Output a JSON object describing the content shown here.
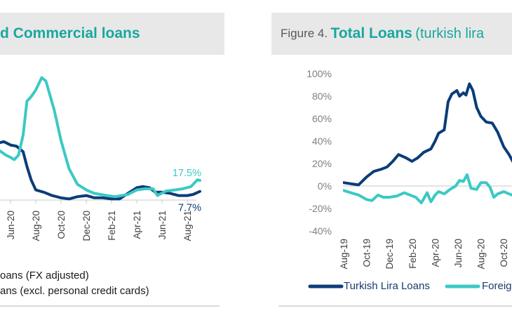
{
  "colors": {
    "navy": "#0b3d78",
    "cyan": "#3cc9c4",
    "title": "#17a89e",
    "header_bg": "#e8e8e8"
  },
  "left_header": {
    "title": "d Commercial loans"
  },
  "right_header": {
    "figure_label": "Figure 4.",
    "title": "Total Loans",
    "subtitle": "(turkish lira"
  },
  "chart_data": [
    {
      "type": "line",
      "title": "d Commercial loans",
      "x_tick_labels": [
        "Jun-20",
        "Aug-20",
        "Oct-20",
        "Dec-20",
        "Feb-21",
        "Apr-21",
        "Jun-21",
        "Aug-21"
      ],
      "x_ticks": [
        "2020-06-01",
        "2020-08-01",
        "2020-10-01",
        "2020-12-01",
        "2021-02-01",
        "2021-04-01",
        "2021-06-01",
        "2021-08-01"
      ],
      "zero_line": true,
      "grid": false,
      "legend_placement": "bottom",
      "annotations": [
        {
          "text": "17.5%",
          "series": 1,
          "color": "#3cc9c4"
        },
        {
          "text": "7.7%",
          "series": 0,
          "color": "#0b3d78"
        }
      ],
      "series": [
        {
          "name": "oans (FX adjusted)",
          "color": "#0b3d78",
          "x": [
            "2020-05-05",
            "2020-05-15",
            "2020-06-01",
            "2020-06-15",
            "2020-07-01",
            "2020-07-10",
            "2020-07-20",
            "2020-08-01",
            "2020-08-20",
            "2020-09-10",
            "2020-10-01",
            "2020-10-20",
            "2020-11-10",
            "2020-12-01",
            "2020-12-20",
            "2021-01-10",
            "2021-02-01",
            "2021-02-20",
            "2021-03-10",
            "2021-04-01",
            "2021-04-15",
            "2021-05-01",
            "2021-05-15",
            "2021-06-01",
            "2021-06-20",
            "2021-07-10",
            "2021-08-01",
            "2021-08-15",
            "2021-08-31"
          ],
          "y": [
            51,
            52,
            49,
            48,
            43,
            30,
            18,
            9,
            7,
            4,
            2,
            1,
            3,
            4,
            2,
            2,
            1,
            1,
            6,
            11,
            12,
            11,
            7,
            7,
            6,
            4,
            4,
            5,
            7.7
          ]
        },
        {
          "name": "ans (excl. personal credit cards)",
          "color": "#3cc9c4",
          "x": [
            "2020-05-05",
            "2020-05-20",
            "2020-06-01",
            "2020-06-10",
            "2020-06-20",
            "2020-07-01",
            "2020-07-10",
            "2020-07-20",
            "2020-08-01",
            "2020-08-15",
            "2020-08-25",
            "2020-09-15",
            "2020-10-01",
            "2020-10-20",
            "2020-11-10",
            "2020-12-01",
            "2020-12-20",
            "2021-01-20",
            "2021-02-10",
            "2021-03-10",
            "2021-04-01",
            "2021-04-20",
            "2021-05-10",
            "2021-05-20",
            "2021-06-10",
            "2021-07-01",
            "2021-07-20",
            "2021-08-10",
            "2021-08-25",
            "2021-08-31"
          ],
          "y": [
            44,
            40,
            38,
            36,
            40,
            58,
            88,
            92,
            98,
            109,
            106,
            80,
            53,
            28,
            14,
            9,
            6,
            4,
            3,
            5,
            9,
            10,
            10,
            4,
            8,
            9,
            10,
            12,
            18,
            17.5
          ]
        }
      ]
    },
    {
      "type": "line",
      "title": "Figure 4. Total Loans (turkish lira",
      "ylim": [
        -40,
        100
      ],
      "y_tick_labels": [
        "100%",
        "80%",
        "60%",
        "40%",
        "20%",
        "0%",
        "-20%",
        "-40%"
      ],
      "y_ticks": [
        100,
        80,
        60,
        40,
        20,
        0,
        -20,
        -40
      ],
      "x_tick_labels": [
        "Aug-19",
        "Oct-19",
        "Dec-19",
        "Feb-20",
        "Apr-20",
        "Jun-20",
        "Aug-20",
        "Oct-20"
      ],
      "x_ticks": [
        "2019-08-01",
        "2019-10-01",
        "2019-12-01",
        "2020-02-01",
        "2020-04-01",
        "2020-06-01",
        "2020-08-01",
        "2020-10-01"
      ],
      "zero_line": true,
      "grid": false,
      "legend_placement": "bottom",
      "series": [
        {
          "name": "Turkish Lira Loans",
          "color": "#0b3d78",
          "x": [
            "2019-08-01",
            "2019-08-20",
            "2019-09-10",
            "2019-10-01",
            "2019-10-20",
            "2019-11-10",
            "2019-11-25",
            "2019-12-10",
            "2019-12-25",
            "2020-01-15",
            "2020-01-30",
            "2020-02-15",
            "2020-03-01",
            "2020-03-20",
            "2020-04-01",
            "2020-04-10",
            "2020-04-25",
            "2020-05-05",
            "2020-05-15",
            "2020-05-28",
            "2020-06-05",
            "2020-06-15",
            "2020-06-22",
            "2020-07-01",
            "2020-07-10",
            "2020-07-20",
            "2020-08-01",
            "2020-08-15",
            "2020-09-01",
            "2020-09-15",
            "2020-10-01",
            "2020-10-15",
            "2020-11-01"
          ],
          "y": [
            3,
            2,
            1,
            8,
            13,
            15,
            17,
            22,
            28,
            25,
            22,
            25,
            30,
            33,
            40,
            47,
            50,
            75,
            82,
            85,
            80,
            83,
            81,
            91,
            85,
            70,
            62,
            57,
            56,
            48,
            35,
            28,
            18
          ]
        },
        {
          "name": "Foreig",
          "color": "#3cc9c4",
          "x": [
            "2019-08-01",
            "2019-08-20",
            "2019-09-10",
            "2019-10-01",
            "2019-10-15",
            "2019-11-01",
            "2019-11-15",
            "2019-12-01",
            "2019-12-20",
            "2020-01-10",
            "2020-01-25",
            "2020-02-10",
            "2020-02-25",
            "2020-03-10",
            "2020-03-20",
            "2020-04-01",
            "2020-04-10",
            "2020-04-25",
            "2020-05-10",
            "2020-05-25",
            "2020-06-05",
            "2020-06-15",
            "2020-06-25",
            "2020-07-05",
            "2020-07-20",
            "2020-08-01",
            "2020-08-15",
            "2020-08-25",
            "2020-09-05",
            "2020-09-15",
            "2020-10-01",
            "2020-10-15",
            "2020-11-01"
          ],
          "y": [
            -4,
            -6,
            -8,
            -12,
            -13,
            -8,
            -10,
            -10,
            -9,
            -6,
            -8,
            -10,
            -15,
            -6,
            -14,
            -8,
            -5,
            -7,
            -3,
            0,
            5,
            4,
            10,
            -2,
            -3,
            3,
            3,
            -1,
            -10,
            -7,
            -5,
            -7,
            -9
          ]
        }
      ]
    }
  ]
}
